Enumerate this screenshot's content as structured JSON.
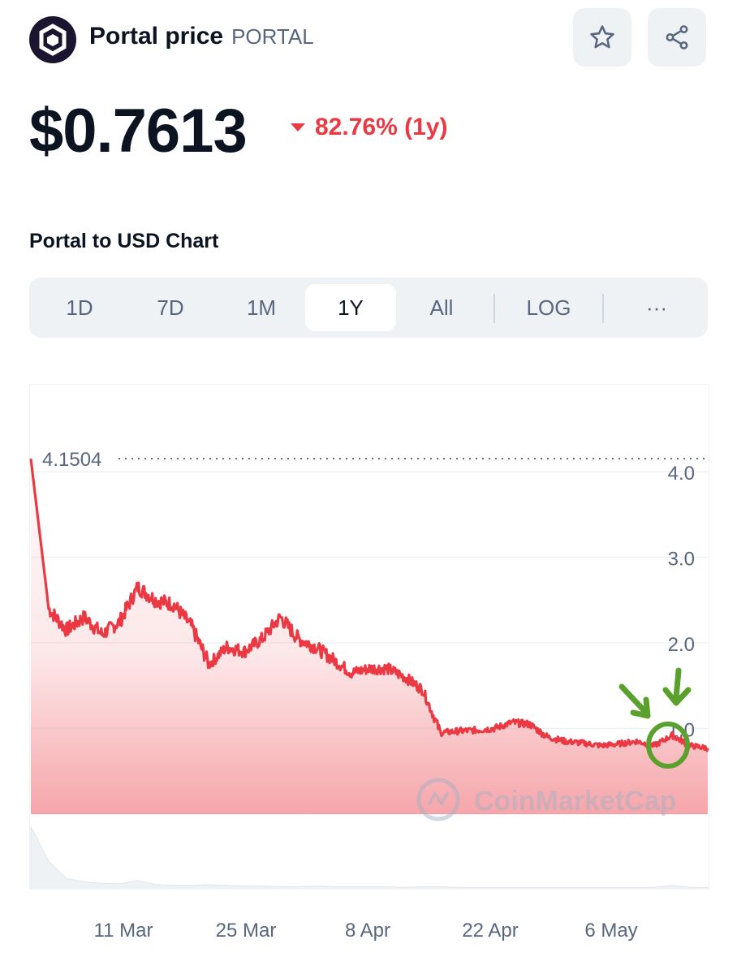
{
  "header": {
    "name": "Portal price",
    "ticker": "PORTAL",
    "logo_icon": "portal-logo-icon",
    "star_icon": "star-icon",
    "share_icon": "share-icon"
  },
  "price": {
    "value": "$0.7613",
    "change": "82.76% (1y)",
    "change_color": "#ea3943"
  },
  "chart_title": "Portal to USD Chart",
  "range_tabs": [
    {
      "label": "1D",
      "active": false
    },
    {
      "label": "7D",
      "active": false
    },
    {
      "label": "1M",
      "active": false
    },
    {
      "label": "1Y",
      "active": true
    },
    {
      "label": "All",
      "active": false
    },
    {
      "label": "LOG",
      "active": false
    },
    {
      "label": "···",
      "active": false
    }
  ],
  "watermark": "CoinMarketCap",
  "chart_data": {
    "type": "line",
    "title": "",
    "xlabel": "",
    "ylabel": "",
    "line_color": "#ea3943",
    "y_ticks": [
      "4.0",
      "3.0",
      "2.0",
      "1.0"
    ],
    "ylim": [
      0,
      4.6
    ],
    "x_ticks": [
      "11 Mar",
      "25 Mar",
      "8 Apr",
      "22 Apr",
      "6 May"
    ],
    "max_label": "4.1504",
    "series": [
      {
        "name": "",
        "x": [
          "29 Feb",
          "1 Mar",
          "3 Mar",
          "5 Mar",
          "7 Mar",
          "9 Mar",
          "11 Mar",
          "13 Mar",
          "15 Mar",
          "17 Mar",
          "19 Mar",
          "21 Mar",
          "23 Mar",
          "25 Mar",
          "27 Mar",
          "29 Mar",
          "31 Mar",
          "2 Apr",
          "4 Apr",
          "6 Apr",
          "8 Apr",
          "10 Apr",
          "12 Apr",
          "14 Apr",
          "16 Apr",
          "18 Apr",
          "20 Apr",
          "22 Apr",
          "24 Apr",
          "26 Apr",
          "28 Apr",
          "30 Apr",
          "2 May",
          "4 May",
          "6 May",
          "8 May",
          "10 May",
          "12 May",
          "14 May"
        ],
        "values": [
          4.15,
          2.4,
          2.15,
          2.3,
          2.1,
          2.25,
          2.65,
          2.5,
          2.45,
          2.2,
          1.75,
          1.95,
          1.9,
          2.05,
          2.3,
          2.05,
          1.95,
          1.8,
          1.65,
          1.7,
          1.7,
          1.6,
          1.45,
          0.95,
          0.97,
          0.98,
          1.0,
          1.07,
          1.05,
          0.9,
          0.85,
          0.83,
          0.8,
          0.82,
          0.85,
          0.8,
          0.92,
          0.8,
          0.77
        ]
      }
    ],
    "volume_series": [
      0.9,
      0.4,
      0.15,
      0.1,
      0.08,
      0.07,
      0.12,
      0.06,
      0.05,
      0.05,
      0.06,
      0.05,
      0.04,
      0.04,
      0.03,
      0.03,
      0.04,
      0.03,
      0.03,
      0.03,
      0.03,
      0.02,
      0.03,
      0.03,
      0.02,
      0.02,
      0.02,
      0.02,
      0.02,
      0.02,
      0.02,
      0.02,
      0.02,
      0.02,
      0.02,
      0.02,
      0.05,
      0.02,
      0.02
    ],
    "annotations": [
      "arrow-icon",
      "arrow-icon",
      "circle-highlight"
    ],
    "annotation_color": "#5aa02c",
    "grid": true,
    "legend": "none"
  }
}
